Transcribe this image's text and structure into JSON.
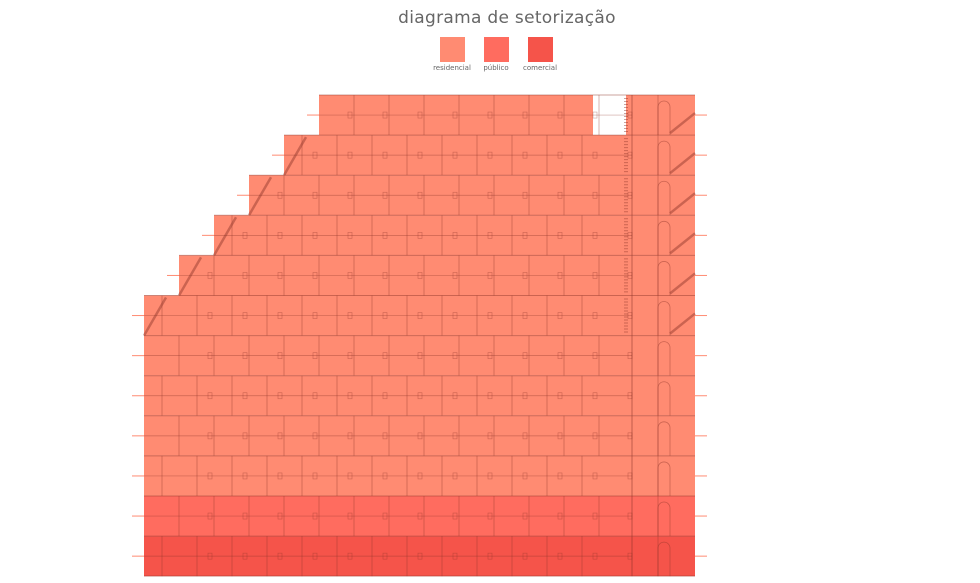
{
  "title": "diagrama de setorização",
  "legend": [
    {
      "label": "residencial",
      "color": "#FF8B72"
    },
    {
      "label": "público",
      "color": "#FF6C5F"
    },
    {
      "label": "comercial",
      "color": "#F5544A"
    }
  ],
  "floors": [
    {
      "use": "residencial"
    },
    {
      "use": "residencial"
    },
    {
      "use": "residencial"
    },
    {
      "use": "residencial"
    },
    {
      "use": "residencial"
    },
    {
      "use": "residencial"
    },
    {
      "use": "residencial"
    },
    {
      "use": "residencial"
    },
    {
      "use": "residencial"
    },
    {
      "use": "residencial"
    },
    {
      "use": "público"
    },
    {
      "use": "comercial"
    }
  ]
}
